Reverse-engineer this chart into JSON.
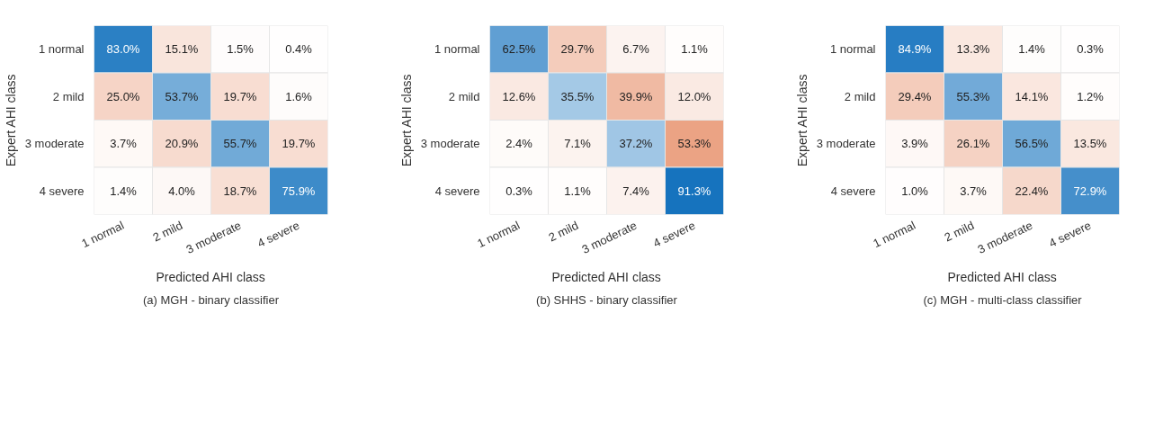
{
  "chart_data": [
    {
      "type": "heatmap",
      "xlabel": "Predicted AHI class",
      "ylabel": "Expert AHI class",
      "annotations": [
        "(a) MGH - binary classifier"
      ],
      "categories": [
        "1 normal",
        "2 mild",
        "3 moderate",
        "4 severe"
      ],
      "y_categories": [
        "1 normal",
        "2 mild",
        "3 moderate",
        "4 severe"
      ],
      "colors": [
        "#0066b8",
        "#d95319"
      ],
      "cells": [
        [
          83.0,
          15.1,
          1.5,
          0.4
        ],
        [
          25.0,
          53.7,
          19.7,
          1.6
        ],
        [
          3.7,
          20.9,
          55.7,
          19.7
        ],
        [
          1.4,
          4.0,
          18.7,
          75.9
        ]
      ],
      "cell_labels": [
        [
          "83.0%",
          "15.1%",
          "1.5%",
          "0.4%"
        ],
        [
          "25.0%",
          "53.7%",
          "19.7%",
          "1.6%"
        ],
        [
          "3.7%",
          "20.9%",
          "55.7%",
          "19.7%"
        ],
        [
          "1.4%",
          "4.0%",
          "18.7%",
          "75.9%"
        ]
      ]
    },
    {
      "type": "heatmap",
      "xlabel": "Predicted AHI class",
      "ylabel": "Expert AHI class",
      "annotations": [
        "(b) SHHS - binary classifier"
      ],
      "categories": [
        "1 normal",
        "2 mild",
        "3 moderate",
        "4 severe"
      ],
      "y_categories": [
        "1 normal",
        "2 mild",
        "3 moderate",
        "4 severe"
      ],
      "colors": [
        "#0066b8",
        "#d95319"
      ],
      "cells": [
        [
          62.5,
          29.7,
          6.7,
          1.1
        ],
        [
          12.6,
          35.5,
          39.9,
          12.0
        ],
        [
          2.4,
          7.1,
          37.2,
          53.3
        ],
        [
          0.3,
          1.1,
          7.4,
          91.3
        ]
      ],
      "cell_labels": [
        [
          "62.5%",
          "29.7%",
          "6.7%",
          "1.1%"
        ],
        [
          "12.6%",
          "35.5%",
          "39.9%",
          "12.0%"
        ],
        [
          "2.4%",
          "7.1%",
          "37.2%",
          "53.3%"
        ],
        [
          "0.3%",
          "1.1%",
          "7.4%",
          "91.3%"
        ]
      ]
    },
    {
      "type": "heatmap",
      "xlabel": "Predicted AHI class",
      "ylabel": "Expert AHI class",
      "annotations": [
        "(c) MGH - multi-class classifier"
      ],
      "categories": [
        "1 normal",
        "2 mild",
        "3 moderate",
        "4 severe"
      ],
      "y_categories": [
        "1 normal",
        "2 mild",
        "3 moderate",
        "4 severe"
      ],
      "colors": [
        "#0066b8",
        "#d95319"
      ],
      "cells": [
        [
          84.9,
          13.3,
          1.4,
          0.3
        ],
        [
          29.4,
          55.3,
          14.1,
          1.2
        ],
        [
          3.9,
          26.1,
          56.5,
          13.5
        ],
        [
          1.0,
          3.7,
          22.4,
          72.9
        ]
      ],
      "cell_labels": [
        [
          "84.9%",
          "13.3%",
          "1.4%",
          "0.3%"
        ],
        [
          "29.4%",
          "55.3%",
          "14.1%",
          "1.2%"
        ],
        [
          "3.9%",
          "26.1%",
          "56.5%",
          "13.5%"
        ],
        [
          "1.0%",
          "3.7%",
          "22.4%",
          "72.9%"
        ]
      ]
    }
  ]
}
